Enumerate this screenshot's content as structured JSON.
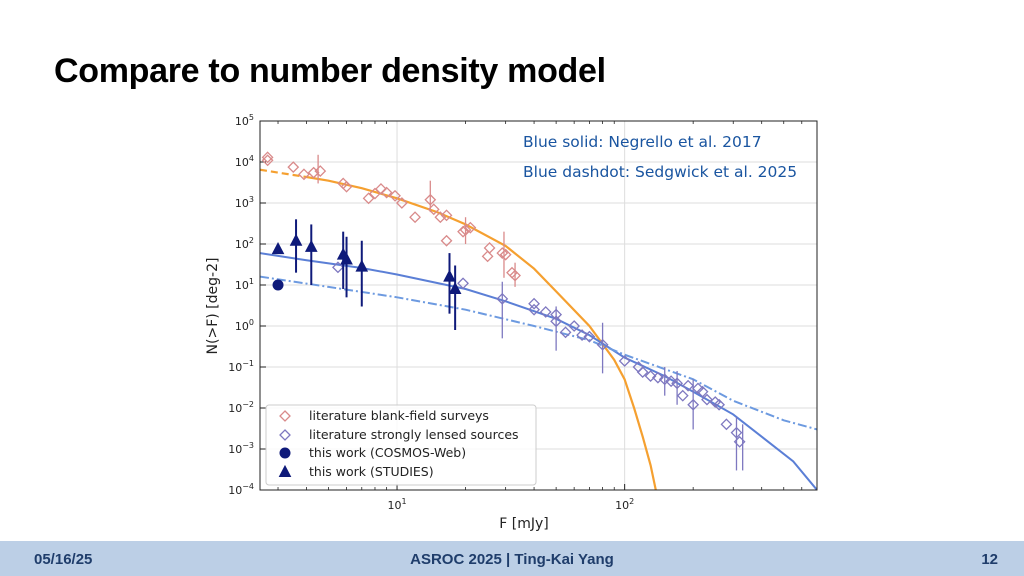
{
  "slide": {
    "title": "Compare to number density model",
    "footer_date": "05/16/25",
    "footer_center": "ASROC 2025 | Ting-Kai Yang",
    "footer_page": "12"
  },
  "chart_data": {
    "type": "scatter",
    "xlabel": "F [mJy]",
    "ylabel": "N(>F) [deg-2]",
    "xscale": "log",
    "yscale": "log",
    "xlim": [
      2.5,
      700
    ],
    "ylim": [
      0.0001,
      100000
    ],
    "grid": true,
    "x_ticks": [
      {
        "value": 10,
        "label": "10",
        "exp": "1"
      },
      {
        "value": 100,
        "label": "10",
        "exp": "2"
      }
    ],
    "y_ticks": [
      {
        "value": 0.0001,
        "label": "10",
        "exp": "−4"
      },
      {
        "value": 0.001,
        "label": "10",
        "exp": "−3"
      },
      {
        "value": 0.01,
        "label": "10",
        "exp": "−2"
      },
      {
        "value": 0.1,
        "label": "10",
        "exp": "−1"
      },
      {
        "value": 1,
        "label": "10",
        "exp": "0"
      },
      {
        "value": 10,
        "label": "10",
        "exp": "1"
      },
      {
        "value": 100,
        "label": "10",
        "exp": "2"
      },
      {
        "value": 1000,
        "label": "10",
        "exp": "3"
      },
      {
        "value": 10000,
        "label": "10",
        "exp": "4"
      },
      {
        "value": 100000,
        "label": "10",
        "exp": "5"
      }
    ],
    "annotations": [
      "Blue solid: Negrello et al. 2017",
      "Blue dashdot: Sedgwick et al. 2025"
    ],
    "legend_position": "lower-left",
    "colors": {
      "orange": "#f5a030",
      "blue": "#5b7fd6",
      "light_blue": "#6d9ae0",
      "pink": "#d98a8a",
      "purple": "#7e78c0",
      "navy": "#0f1a7a"
    },
    "series": [
      {
        "name": "literature blank-field surveys",
        "marker": "diamond-open",
        "color": "#d98a8a",
        "points": [
          {
            "x": 2.7,
            "y": 13000
          },
          {
            "x": 2.7,
            "y": 11000
          },
          {
            "x": 3.5,
            "y": 7500
          },
          {
            "x": 3.9,
            "y": 5000
          },
          {
            "x": 4.3,
            "y": 5500
          },
          {
            "x": 4.6,
            "y": 6000
          },
          {
            "x": 5.8,
            "y": 3000
          },
          {
            "x": 6.0,
            "y": 2500
          },
          {
            "x": 7.5,
            "y": 1300
          },
          {
            "x": 8.0,
            "y": 1700
          },
          {
            "x": 8.5,
            "y": 2200
          },
          {
            "x": 9.0,
            "y": 1800
          },
          {
            "x": 9.8,
            "y": 1500
          },
          {
            "x": 10.5,
            "y": 1000
          },
          {
            "x": 12,
            "y": 450
          },
          {
            "x": 14,
            "y": 1200
          },
          {
            "x": 14.5,
            "y": 700
          },
          {
            "x": 15.5,
            "y": 450
          },
          {
            "x": 16.5,
            "y": 500
          },
          {
            "x": 16.5,
            "y": 120
          },
          {
            "x": 19.5,
            "y": 200
          },
          {
            "x": 20,
            "y": 220
          },
          {
            "x": 21,
            "y": 250
          },
          {
            "x": 25,
            "y": 50
          },
          {
            "x": 25.5,
            "y": 80
          },
          {
            "x": 29,
            "y": 60
          },
          {
            "x": 30,
            "y": 55
          },
          {
            "x": 32,
            "y": 20
          },
          {
            "x": 33,
            "y": 17
          }
        ],
        "errors": [
          {
            "x": 4.5,
            "lo": 3000,
            "hi": 15000
          },
          {
            "x": 14,
            "lo": 600,
            "hi": 3500
          },
          {
            "x": 20,
            "lo": 100,
            "hi": 450
          },
          {
            "x": 29.5,
            "lo": 15,
            "hi": 200
          },
          {
            "x": 33,
            "lo": 9,
            "hi": 35
          }
        ]
      },
      {
        "name": "literature strongly lensed sources",
        "marker": "diamond-open",
        "color": "#7e78c0",
        "points": [
          {
            "x": 5.5,
            "y": 27
          },
          {
            "x": 19.5,
            "y": 11
          },
          {
            "x": 29,
            "y": 4.6
          },
          {
            "x": 40,
            "y": 3.5
          },
          {
            "x": 40,
            "y": 2.5
          },
          {
            "x": 45,
            "y": 2.2
          },
          {
            "x": 50,
            "y": 1.9
          },
          {
            "x": 50,
            "y": 1.3
          },
          {
            "x": 55,
            "y": 0.7
          },
          {
            "x": 60,
            "y": 1.0
          },
          {
            "x": 65,
            "y": 0.6
          },
          {
            "x": 70,
            "y": 0.55
          },
          {
            "x": 80,
            "y": 0.35
          },
          {
            "x": 100,
            "y": 0.14
          },
          {
            "x": 115,
            "y": 0.1
          },
          {
            "x": 120,
            "y": 0.075
          },
          {
            "x": 130,
            "y": 0.06
          },
          {
            "x": 140,
            "y": 0.055
          },
          {
            "x": 150,
            "y": 0.05
          },
          {
            "x": 160,
            "y": 0.045
          },
          {
            "x": 170,
            "y": 0.04
          },
          {
            "x": 180,
            "y": 0.02
          },
          {
            "x": 190,
            "y": 0.035
          },
          {
            "x": 200,
            "y": 0.012
          },
          {
            "x": 210,
            "y": 0.03
          },
          {
            "x": 220,
            "y": 0.025
          },
          {
            "x": 230,
            "y": 0.016
          },
          {
            "x": 250,
            "y": 0.014
          },
          {
            "x": 260,
            "y": 0.012
          },
          {
            "x": 280,
            "y": 0.004
          },
          {
            "x": 310,
            "y": 0.0025
          },
          {
            "x": 320,
            "y": 0.0015
          }
        ],
        "errors": [
          {
            "x": 29,
            "lo": 0.5,
            "hi": 12
          },
          {
            "x": 50,
            "lo": 0.25,
            "hi": 3
          },
          {
            "x": 80,
            "lo": 0.07,
            "hi": 1.2
          },
          {
            "x": 150,
            "lo": 0.02,
            "hi": 0.1
          },
          {
            "x": 170,
            "lo": 0.012,
            "hi": 0.08
          },
          {
            "x": 200,
            "lo": 0.003,
            "hi": 0.05
          },
          {
            "x": 310,
            "lo": 0.0003,
            "hi": 0.006
          },
          {
            "x": 330,
            "lo": 0.0003,
            "hi": 0.004
          }
        ]
      },
      {
        "name": "this work (COSMOS-Web)",
        "marker": "circle",
        "color": "#0f1a7a",
        "points": [
          {
            "x": 3.0,
            "y": 10
          }
        ],
        "errors": []
      },
      {
        "name": "this work (STUDIES)",
        "marker": "triangle",
        "color": "#0f1a7a",
        "points": [
          {
            "x": 3.0,
            "y": 75
          },
          {
            "x": 3.6,
            "y": 120
          },
          {
            "x": 4.2,
            "y": 85
          },
          {
            "x": 5.8,
            "y": 55
          },
          {
            "x": 6.0,
            "y": 42
          },
          {
            "x": 7.0,
            "y": 28
          },
          {
            "x": 17,
            "y": 16
          },
          {
            "x": 18,
            "y": 8
          }
        ],
        "errors": [
          {
            "x": 3.6,
            "lo": 20,
            "hi": 400
          },
          {
            "x": 4.2,
            "lo": 10,
            "hi": 300
          },
          {
            "x": 5.8,
            "lo": 8,
            "hi": 200
          },
          {
            "x": 6.0,
            "lo": 5,
            "hi": 150
          },
          {
            "x": 7.0,
            "lo": 3,
            "hi": 120
          },
          {
            "x": 17,
            "lo": 2,
            "hi": 60
          },
          {
            "x": 18,
            "lo": 0.8,
            "hi": 30
          }
        ]
      },
      {
        "name": "",
        "style": "orange-solid-with-dashed-faint-end",
        "color": "#f5a030",
        "dashed_until_x": 4.2,
        "line": [
          {
            "x": 2.5,
            "y": 6500
          },
          {
            "x": 3,
            "y": 5500
          },
          {
            "x": 4,
            "y": 4300
          },
          {
            "x": 5,
            "y": 3500
          },
          {
            "x": 7,
            "y": 2300
          },
          {
            "x": 10,
            "y": 1300
          },
          {
            "x": 15,
            "y": 600
          },
          {
            "x": 20,
            "y": 300
          },
          {
            "x": 30,
            "y": 90
          },
          {
            "x": 40,
            "y": 25
          },
          {
            "x": 50,
            "y": 7
          },
          {
            "x": 70,
            "y": 1
          },
          {
            "x": 90,
            "y": 0.15
          },
          {
            "x": 100,
            "y": 0.05
          },
          {
            "x": 110,
            "y": 0.01
          },
          {
            "x": 120,
            "y": 0.002
          },
          {
            "x": 130,
            "y": 0.0004
          },
          {
            "x": 137,
            "y": 0.0001
          }
        ]
      },
      {
        "name": "",
        "style": "blue-solid",
        "color": "#5b7fd6",
        "line": [
          {
            "x": 2.5,
            "y": 60
          },
          {
            "x": 4,
            "y": 40
          },
          {
            "x": 7,
            "y": 26
          },
          {
            "x": 10,
            "y": 18
          },
          {
            "x": 20,
            "y": 8
          },
          {
            "x": 30,
            "y": 4
          },
          {
            "x": 50,
            "y": 1.5
          },
          {
            "x": 70,
            "y": 0.6
          },
          {
            "x": 100,
            "y": 0.17
          },
          {
            "x": 150,
            "y": 0.06
          },
          {
            "x": 200,
            "y": 0.025
          },
          {
            "x": 300,
            "y": 0.007
          },
          {
            "x": 400,
            "y": 0.002
          },
          {
            "x": 550,
            "y": 0.0005
          },
          {
            "x": 700,
            "y": 0.0001
          }
        ]
      },
      {
        "name": "",
        "style": "light-blue-dashdot",
        "color": "#6d9ae0",
        "line": [
          {
            "x": 2.5,
            "y": 16
          },
          {
            "x": 5,
            "y": 9
          },
          {
            "x": 10,
            "y": 5
          },
          {
            "x": 20,
            "y": 2.5
          },
          {
            "x": 40,
            "y": 1
          },
          {
            "x": 70,
            "y": 0.45
          },
          {
            "x": 100,
            "y": 0.2
          },
          {
            "x": 200,
            "y": 0.05
          },
          {
            "x": 300,
            "y": 0.015
          },
          {
            "x": 500,
            "y": 0.005
          },
          {
            "x": 700,
            "y": 0.003
          }
        ]
      }
    ]
  }
}
